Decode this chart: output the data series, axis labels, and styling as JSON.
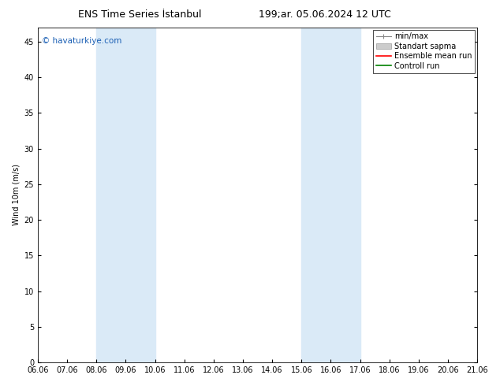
{
  "title": "ENS Time Series İstanbul",
  "subtitle": "199;ar. 05.06.2024 12 UTC",
  "ylabel": "Wind 10m (m/s)",
  "watermark": "© havaturkiye.com",
  "ylim": [
    0,
    47
  ],
  "yticks": [
    0,
    5,
    10,
    15,
    20,
    25,
    30,
    35,
    40,
    45
  ],
  "xtick_labels": [
    "06.06",
    "07.06",
    "08.06",
    "09.06",
    "10.06",
    "11.06",
    "12.06",
    "13.06",
    "14.06",
    "15.06",
    "16.06",
    "17.06",
    "18.06",
    "19.06",
    "20.06",
    "21.06"
  ],
  "shaded_regions": [
    {
      "xstart": 2,
      "xend": 4,
      "color": "#daeaf7"
    },
    {
      "xstart": 9,
      "xend": 11,
      "color": "#daeaf7"
    }
  ],
  "legend_entries": [
    {
      "label": "min/max"
    },
    {
      "label": "Standart sapma"
    },
    {
      "label": "Ensemble mean run"
    },
    {
      "label": "Controll run"
    }
  ],
  "background_color": "#ffffff",
  "plot_bg_color": "#ffffff",
  "title_fontsize": 9,
  "subtitle_fontsize": 9,
  "axis_fontsize": 7,
  "legend_fontsize": 7,
  "watermark_color": "#1a5fb4",
  "watermark_fontsize": 7.5
}
